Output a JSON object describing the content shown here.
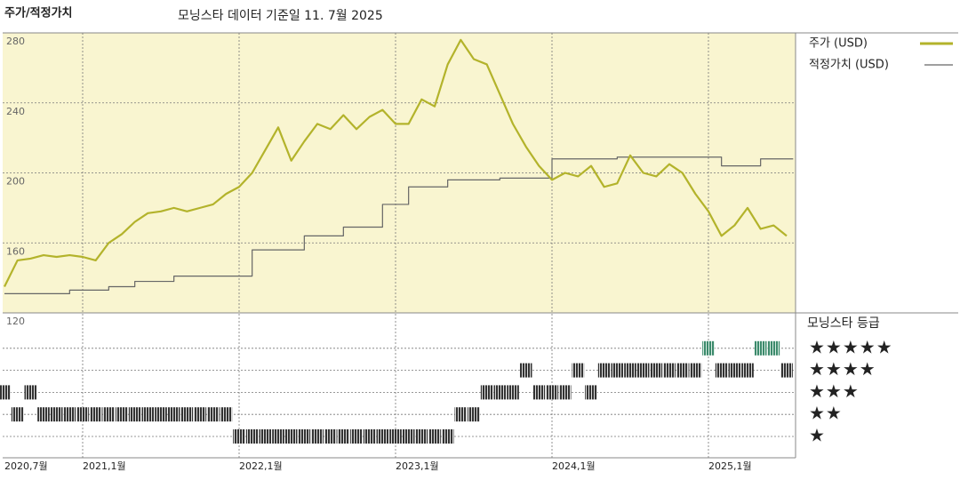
{
  "header": {
    "title": "주가/적정가치",
    "subtitle": "모닝스타 데이터 기준일 11. 7월 2025"
  },
  "chart_data": {
    "type": "line",
    "x": [
      "2020-07",
      "2020-08",
      "2020-09",
      "2020-10",
      "2020-11",
      "2020-12",
      "2021-01",
      "2021-02",
      "2021-03",
      "2021-04",
      "2021-05",
      "2021-06",
      "2021-07",
      "2021-08",
      "2021-09",
      "2021-10",
      "2021-11",
      "2021-12",
      "2022-01",
      "2022-02",
      "2022-03",
      "2022-04",
      "2022-05",
      "2022-06",
      "2022-07",
      "2022-08",
      "2022-09",
      "2022-10",
      "2022-11",
      "2022-12",
      "2023-01",
      "2023-02",
      "2023-03",
      "2023-04",
      "2023-05",
      "2023-06",
      "2023-07",
      "2023-08",
      "2023-09",
      "2023-10",
      "2023-11",
      "2023-12",
      "2024-01",
      "2024-02",
      "2024-03",
      "2024-04",
      "2024-05",
      "2024-06",
      "2024-07",
      "2024-08",
      "2024-09",
      "2024-10",
      "2024-11",
      "2024-12",
      "2025-01",
      "2025-02",
      "2025-03",
      "2025-04",
      "2025-05",
      "2025-06",
      "2025-07"
    ],
    "xlim": [
      "2020-07",
      "2025-07"
    ],
    "xticks": [
      {
        "value": "2020-07",
        "label": "2020,7월"
      },
      {
        "value": "2021-01",
        "label": "2021,1월"
      },
      {
        "value": "2022-01",
        "label": "2022,1월"
      },
      {
        "value": "2023-01",
        "label": "2023,1월"
      },
      {
        "value": "2024-01",
        "label": "2024,1월"
      },
      {
        "value": "2025-01",
        "label": "2025,1월"
      }
    ],
    "ylim": [
      120,
      280
    ],
    "yticks": [
      120,
      160,
      200,
      240,
      280
    ],
    "grid": true,
    "series": [
      {
        "name": "주가 (USD)",
        "color": "#b3b32b",
        "values": [
          135,
          150,
          151,
          153,
          152,
          153,
          152,
          150,
          160,
          165,
          172,
          177,
          178,
          180,
          178,
          180,
          182,
          188,
          192,
          200,
          213,
          226,
          207,
          218,
          228,
          225,
          233,
          225,
          232,
          236,
          228,
          228,
          242,
          238,
          262,
          276,
          265,
          262,
          245,
          228,
          215,
          204,
          196,
          200,
          198,
          204,
          192,
          194,
          210,
          200,
          198,
          205,
          200,
          188,
          178,
          164,
          170,
          180,
          168,
          170,
          164
        ]
      },
      {
        "name": "적정가치 (USD)",
        "color": "#666666",
        "step": true,
        "values": [
          131,
          131,
          131,
          131,
          131,
          131,
          133,
          133,
          133,
          135,
          135,
          138,
          138,
          138,
          141,
          141,
          141,
          141,
          141,
          141,
          156,
          156,
          156,
          156,
          164,
          164,
          164,
          169,
          169,
          169,
          182,
          182,
          192,
          192,
          192,
          196,
          196,
          196,
          196,
          197,
          197,
          197,
          197,
          208,
          208,
          208,
          208,
          208,
          209,
          209,
          209,
          209,
          209,
          209,
          209,
          209,
          204,
          204,
          204,
          208,
          208
        ]
      }
    ],
    "rating": {
      "title": "모닝스타 등급",
      "levels": [
        {
          "value": 5,
          "label": "★★★★★"
        },
        {
          "value": 4,
          "label": "★★★★"
        },
        {
          "value": 3,
          "label": "★★★"
        },
        {
          "value": 2,
          "label": "★★"
        },
        {
          "value": 1,
          "label": "★"
        }
      ],
      "color": "#333333",
      "top_color": "#3c8a6c",
      "values": [
        3,
        2,
        3,
        2,
        2,
        2,
        2,
        2,
        2,
        2,
        2,
        2,
        2,
        2,
        2,
        2,
        2,
        2,
        1,
        1,
        1,
        1,
        1,
        1,
        1,
        1,
        1,
        1,
        1,
        1,
        1,
        1,
        1,
        1,
        1,
        2,
        2,
        3,
        3,
        3,
        4,
        3,
        3,
        3,
        4,
        3,
        4,
        4,
        4,
        4,
        4,
        4,
        4,
        4,
        5,
        4,
        4,
        4,
        5,
        5,
        4
      ]
    }
  }
}
